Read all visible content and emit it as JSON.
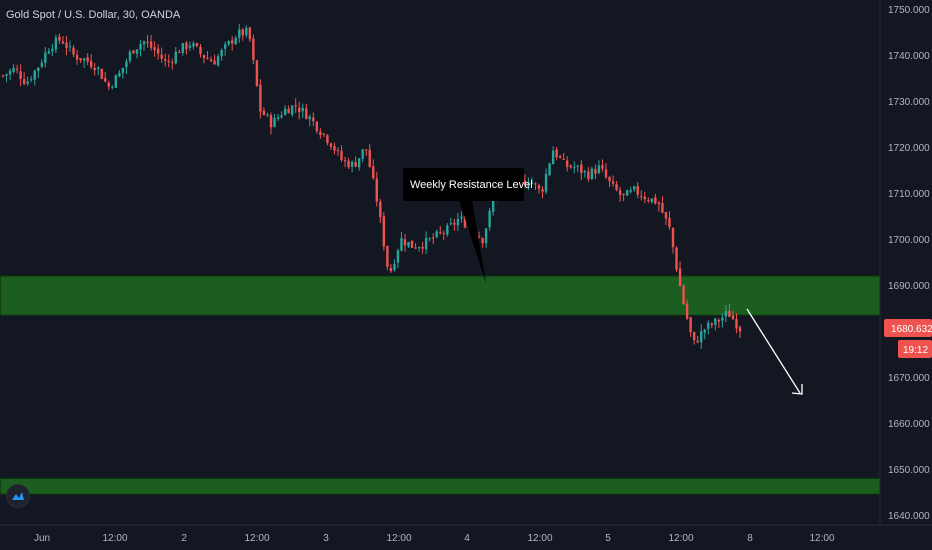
{
  "header": {
    "title": "Gold Spot / U.S. Dollar, 30, OANDA"
  },
  "colors": {
    "background": "#131722",
    "up_candle": "#26a69a",
    "down_candle": "#ef5350",
    "zone_fill": "#1b5e20",
    "zone_border": "#0b2e0d",
    "current_price_badge": "#ef5350",
    "arrow": "#ffffff",
    "annotation_bg": "#000000"
  },
  "price_axis": {
    "ticks": [
      "1750.000",
      "1740.000",
      "1730.000",
      "1720.000",
      "1710.000",
      "1700.000",
      "1690.000",
      "1680.000",
      "1670.000",
      "1660.000",
      "1650.000",
      "1640.000"
    ],
    "current_price": "1680.632",
    "countdown": "19:12"
  },
  "time_axis": {
    "ticks": [
      "Jun",
      "12:00",
      "2",
      "12:00",
      "3",
      "12:00",
      "4",
      "12:00",
      "5",
      "12:00",
      "8",
      "12:00"
    ]
  },
  "annotation": {
    "text": "Weekly Resistance Level"
  },
  "chart_data": {
    "type": "candlestick",
    "title": "Gold Spot / U.S. Dollar, 30, OANDA",
    "ylim": [
      1638,
      1752
    ],
    "y_ticks": [
      1750,
      1740,
      1730,
      1720,
      1710,
      1700,
      1690,
      1680,
      1670,
      1660,
      1650,
      1640
    ],
    "x_ticks": [
      "Jun",
      "12:00",
      "2",
      "12:00",
      "3",
      "12:00",
      "4",
      "12:00",
      "5",
      "12:00",
      "8",
      "12:00"
    ],
    "current_price": 1680.632,
    "zones": [
      {
        "from": 1683.4,
        "to": 1692.0
      },
      {
        "from": 1644.5,
        "to": 1648.0
      }
    ],
    "projection_arrow": {
      "from_price": 1684.0,
      "to_price": 1664.0
    },
    "close_path": [
      1735.5,
      1737.0,
      1734.0,
      1737.5,
      1742.0,
      1743.5,
      1740.0,
      1739.0,
      1737.5,
      1733.0,
      1736.0,
      1741.0,
      1743.0,
      1741.0,
      1738.0,
      1741.0,
      1742.5,
      1740.0,
      1738.5,
      1741.5,
      1744.5,
      1745.0,
      1728.0,
      1725.0,
      1728.0,
      1729.0,
      1727.0,
      1724.0,
      1721.0,
      1717.0,
      1716.0,
      1720.0,
      1708.0,
      1692.0,
      1700.0,
      1698.5,
      1699.0,
      1700.5,
      1702.0,
      1704.5,
      1702.5,
      1700.0,
      1709.0,
      1714.0,
      1712.0,
      1713.0,
      1710.0,
      1719.5,
      1716.0,
      1715.5,
      1714.0,
      1715.5,
      1711.5,
      1709.0,
      1710.5,
      1709.0,
      1708.0,
      1702.0,
      1688.0,
      1677.0,
      1680.5,
      1682.0,
      1684.0,
      1680.6
    ]
  }
}
